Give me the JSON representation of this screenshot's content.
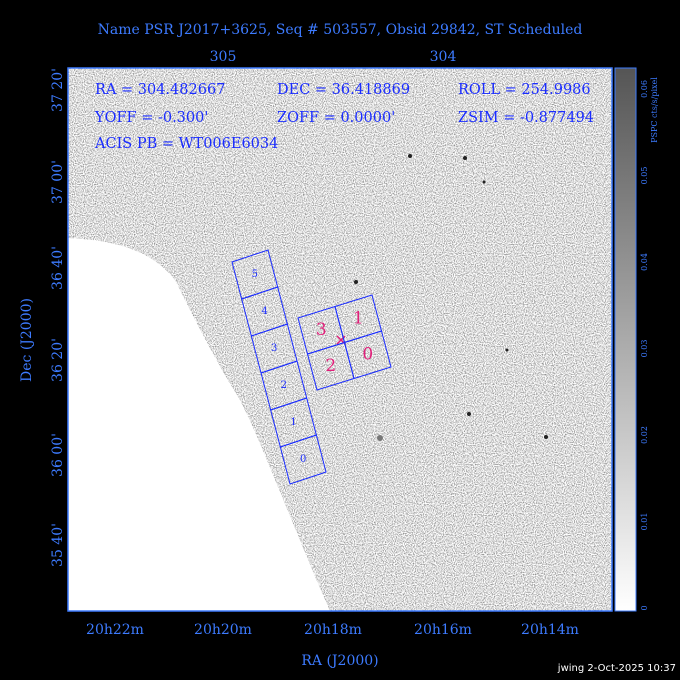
{
  "header": {
    "title": "Name PSR J2017+3625, Seq # 503557, Obsid 29842, ST Scheduled"
  },
  "top_axis": {
    "ticks": [
      "305",
      "304"
    ]
  },
  "left_axis": {
    "title": "Dec (J2000)",
    "ticks": [
      "37 20'",
      "37 00'",
      "36 40'",
      "36 20'",
      "36 00'",
      "35 40'"
    ]
  },
  "bottom_axis": {
    "title": "RA (J2000)",
    "ticks": [
      "20h22m",
      "20h20m",
      "20h18m",
      "20h16m",
      "20h14m"
    ]
  },
  "colorbar": {
    "label": "PSPC cts/s/pixel",
    "ticks": [
      "0",
      "0.01",
      "0.02",
      "0.03",
      "0.04",
      "0.05",
      "0.06"
    ]
  },
  "info": [
    [
      "RA = 304.482667",
      "DEC = 36.418869",
      "ROLL = 254.9986"
    ],
    [
      "YOFF = -0.300'",
      "ZOFF =  0.0000'",
      "ZSIM = -0.877494"
    ],
    [
      "ACIS PB = WT006E6034"
    ]
  ],
  "acis_s_chips": [
    "5",
    "4",
    "3",
    "2",
    "1",
    "0"
  ],
  "acis_i_chips": [
    "3",
    "1",
    "2",
    "0"
  ],
  "footer": "jwing  2-Oct-2025 10:37"
}
